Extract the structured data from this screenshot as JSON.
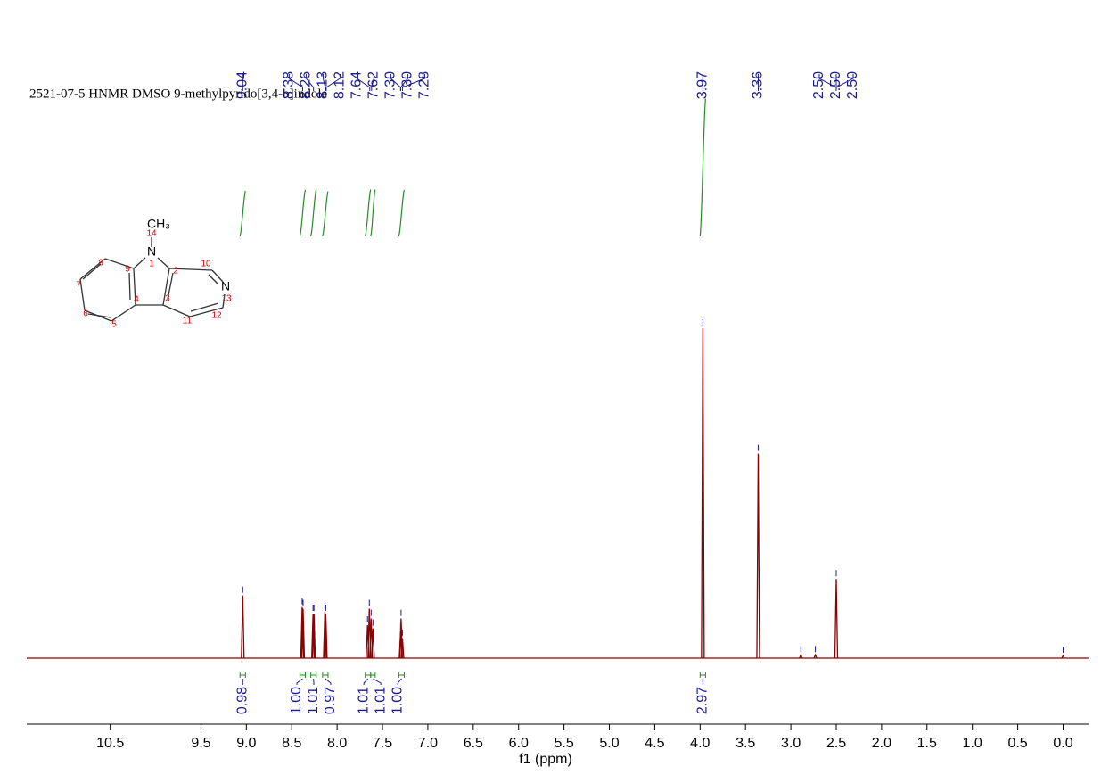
{
  "chart_data": {
    "type": "nmr",
    "title": "2521-07-5 HNMR DMSO 9-methylpyrido[3,4-b]indole",
    "x_label": "f1 (ppm)",
    "xlim": [
      11.42,
      -0.29
    ],
    "ylim": [
      0,
      100
    ],
    "xticks": [
      {
        "value": 0,
        "label": "0.0"
      },
      0.5,
      {
        "value": 1,
        "label": "1.0"
      },
      1.5,
      {
        "value": 2,
        "label": "2.0"
      },
      2.5,
      {
        "value": 3,
        "label": "3.0"
      },
      3.5,
      {
        "value": 4,
        "label": "4.0"
      },
      4.5,
      {
        "value": 5,
        "label": "5.0"
      },
      5.5,
      {
        "value": 6,
        "label": "6.0"
      },
      6.5,
      {
        "value": 7,
        "label": "7.0"
      },
      7.5,
      {
        "value": 8,
        "label": "8.0"
      },
      8.5,
      {
        "value": 9,
        "label": "9.0"
      },
      9.5,
      10.5
    ],
    "color": "#8b0000",
    "integral_color": "#228b22",
    "label_color": "#1a1a8c",
    "x": [
      9.04,
      8.385,
      8.375,
      8.265,
      8.255,
      8.135,
      8.125,
      7.665,
      7.645,
      7.625,
      7.605,
      7.3,
      7.295,
      7.28,
      3.97,
      3.36,
      2.89,
      2.73,
      2.5,
      0.0
    ],
    "values": [
      19,
      15.5,
      15,
      13.5,
      13.5,
      14,
      13.5,
      10,
      15,
      12,
      9,
      8,
      12,
      6,
      100,
      62,
      1,
      1,
      24,
      0.8
    ],
    "peak_labels": [
      9.04,
      8.38,
      8.26,
      8.13,
      8.12,
      7.64,
      7.62,
      {
        "value": 7.3,
        "label": "7.30"
      },
      {
        "value": 7.3,
        "label": "7.30"
      },
      7.28,
      3.97,
      3.36,
      {
        "value": 2.5,
        "label": "2.50"
      },
      {
        "value": 2.5,
        "label": "2.50"
      },
      {
        "value": 2.5,
        "label": "2.50"
      }
    ],
    "integrals": [
      {
        "range": [
          9.07,
          9.01
        ],
        "value": 0.98
      },
      {
        "range": [
          8.41,
          8.35
        ],
        "value": {
          "value": 1,
          "label": "1.00"
        }
      },
      {
        "range": [
          8.29,
          8.23
        ],
        "value": 1.01
      },
      {
        "range": [
          8.16,
          8.1
        ],
        "value": 0.97
      },
      {
        "range": [
          7.69,
          7.63
        ],
        "value": 1.01
      },
      {
        "range": [
          7.63,
          7.58
        ],
        "value": 1.01
      },
      {
        "range": [
          7.32,
          7.26
        ],
        "value": {
          "value": 1,
          "label": "1.00"
        }
      },
      {
        "range": [
          4.0,
          3.94
        ],
        "value": 2.97
      }
    ]
  },
  "structure": {
    "atoms": [
      "CH₃",
      "14",
      "N",
      "1",
      "8",
      "9",
      "10",
      "2",
      "N",
      "13",
      "7",
      "4",
      "3",
      "6",
      "5",
      "11",
      "12"
    ]
  }
}
